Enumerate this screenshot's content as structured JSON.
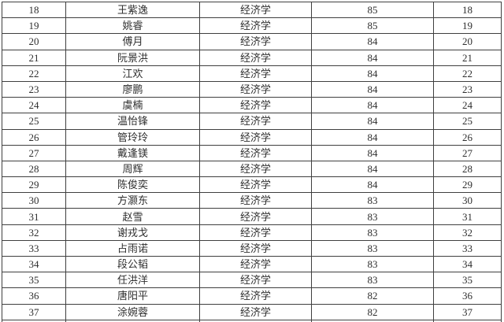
{
  "table": {
    "fields": [
      "rank",
      "name",
      "major",
      "score",
      "rank_repeat"
    ],
    "rows": [
      {
        "rank": "18",
        "name": "王紫逸",
        "major": "经济学",
        "score": "85",
        "rank_repeat": "18"
      },
      {
        "rank": "19",
        "name": "姚睿",
        "major": "经济学",
        "score": "85",
        "rank_repeat": "19"
      },
      {
        "rank": "20",
        "name": "傅月",
        "major": "经济学",
        "score": "84",
        "rank_repeat": "20"
      },
      {
        "rank": "21",
        "name": "阮景洪",
        "major": "经济学",
        "score": "84",
        "rank_repeat": "21"
      },
      {
        "rank": "22",
        "name": "江欢",
        "major": "经济学",
        "score": "84",
        "rank_repeat": "22"
      },
      {
        "rank": "23",
        "name": "廖鹏",
        "major": "经济学",
        "score": "84",
        "rank_repeat": "23"
      },
      {
        "rank": "24",
        "name": "虞楠",
        "major": "经济学",
        "score": "84",
        "rank_repeat": "24"
      },
      {
        "rank": "25",
        "name": "温怡锋",
        "major": "经济学",
        "score": "84",
        "rank_repeat": "25"
      },
      {
        "rank": "26",
        "name": "管玲玲",
        "major": "经济学",
        "score": "84",
        "rank_repeat": "26"
      },
      {
        "rank": "27",
        "name": "戴逢镁",
        "major": "经济学",
        "score": "84",
        "rank_repeat": "27"
      },
      {
        "rank": "28",
        "name": "周辉",
        "major": "经济学",
        "score": "84",
        "rank_repeat": "28"
      },
      {
        "rank": "29",
        "name": "陈俊奕",
        "major": "经济学",
        "score": "84",
        "rank_repeat": "29"
      },
      {
        "rank": "30",
        "name": "方灏东",
        "major": "经济学",
        "score": "83",
        "rank_repeat": "30"
      },
      {
        "rank": "31",
        "name": "赵雪",
        "major": "经济学",
        "score": "83",
        "rank_repeat": "31"
      },
      {
        "rank": "32",
        "name": "谢戎戈",
        "major": "经济学",
        "score": "83",
        "rank_repeat": "32"
      },
      {
        "rank": "33",
        "name": "占雨诺",
        "major": "经济学",
        "score": "83",
        "rank_repeat": "33"
      },
      {
        "rank": "34",
        "name": "段公韬",
        "major": "经济学",
        "score": "83",
        "rank_repeat": "34"
      },
      {
        "rank": "35",
        "name": "任洪洋",
        "major": "经济学",
        "score": "83",
        "rank_repeat": "35"
      },
      {
        "rank": "36",
        "name": "唐阳平",
        "major": "经济学",
        "score": "82",
        "rank_repeat": "36"
      },
      {
        "rank": "37",
        "name": "涂婉蓉",
        "major": "经济学",
        "score": "82",
        "rank_repeat": "37"
      }
    ],
    "colors": {
      "border": "#3f3f3f",
      "text": "#2f2f2f",
      "background": "#ffffff"
    }
  }
}
